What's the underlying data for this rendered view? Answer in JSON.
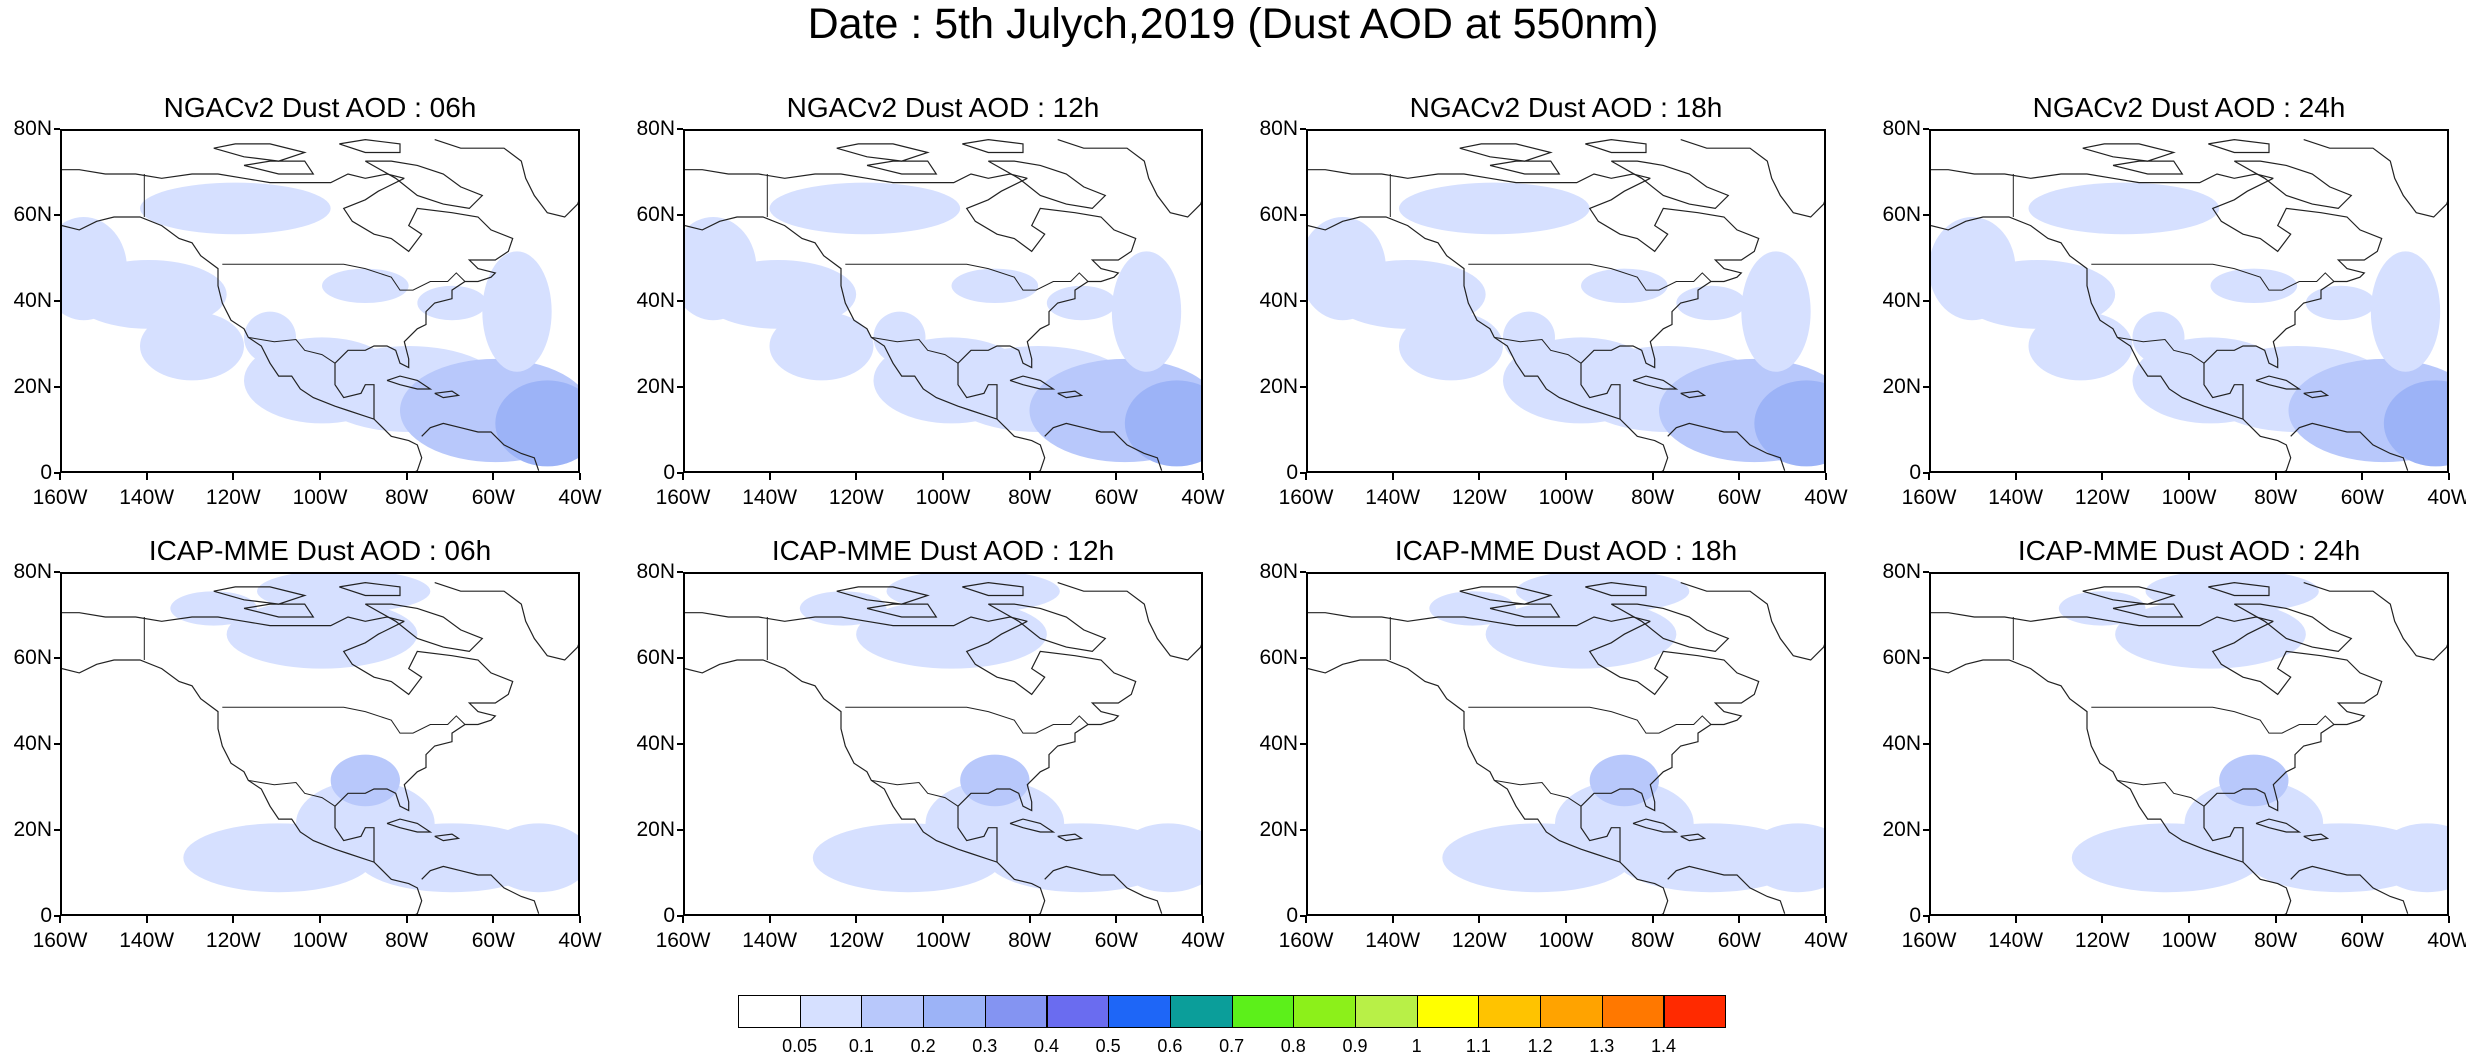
{
  "title": "Date : 5th Julych,2019 (Dust AOD at 550nm)",
  "y_ticks": [
    "80N",
    "60N",
    "40N",
    "20N",
    "0"
  ],
  "x_ticks": [
    "160W",
    "140W",
    "120W",
    "100W",
    "80W",
    "60W",
    "40W"
  ],
  "panels": [
    {
      "title": "NGACv2 Dust AOD : 06h"
    },
    {
      "title": "NGACv2 Dust AOD : 12h"
    },
    {
      "title": "NGACv2 Dust AOD : 18h"
    },
    {
      "title": "NGACv2 Dust AOD : 24h"
    },
    {
      "title": "ICAP-MME Dust AOD : 06h"
    },
    {
      "title": "ICAP-MME Dust AOD : 12h"
    },
    {
      "title": "ICAP-MME Dust AOD : 18h"
    },
    {
      "title": "ICAP-MME Dust AOD : 24h"
    }
  ],
  "colorbar": {
    "labels": [
      "0.05",
      "0.1",
      "0.2",
      "0.3",
      "0.4",
      "0.5",
      "0.6",
      "0.7",
      "0.8",
      "0.9",
      "1",
      "1.1",
      "1.2",
      "1.3",
      "1.4"
    ],
    "colors": [
      "#ffffff",
      "#d6e0ff",
      "#b8c8fb",
      "#9cb3f7",
      "#8494f2",
      "#6a6cf0",
      "#1e66f7",
      "#0b9e9a",
      "#5cf01a",
      "#8cf01a",
      "#b8f047",
      "#ffff00",
      "#ffc300",
      "#ffa300",
      "#ff7800",
      "#ff2a00"
    ]
  }
}
